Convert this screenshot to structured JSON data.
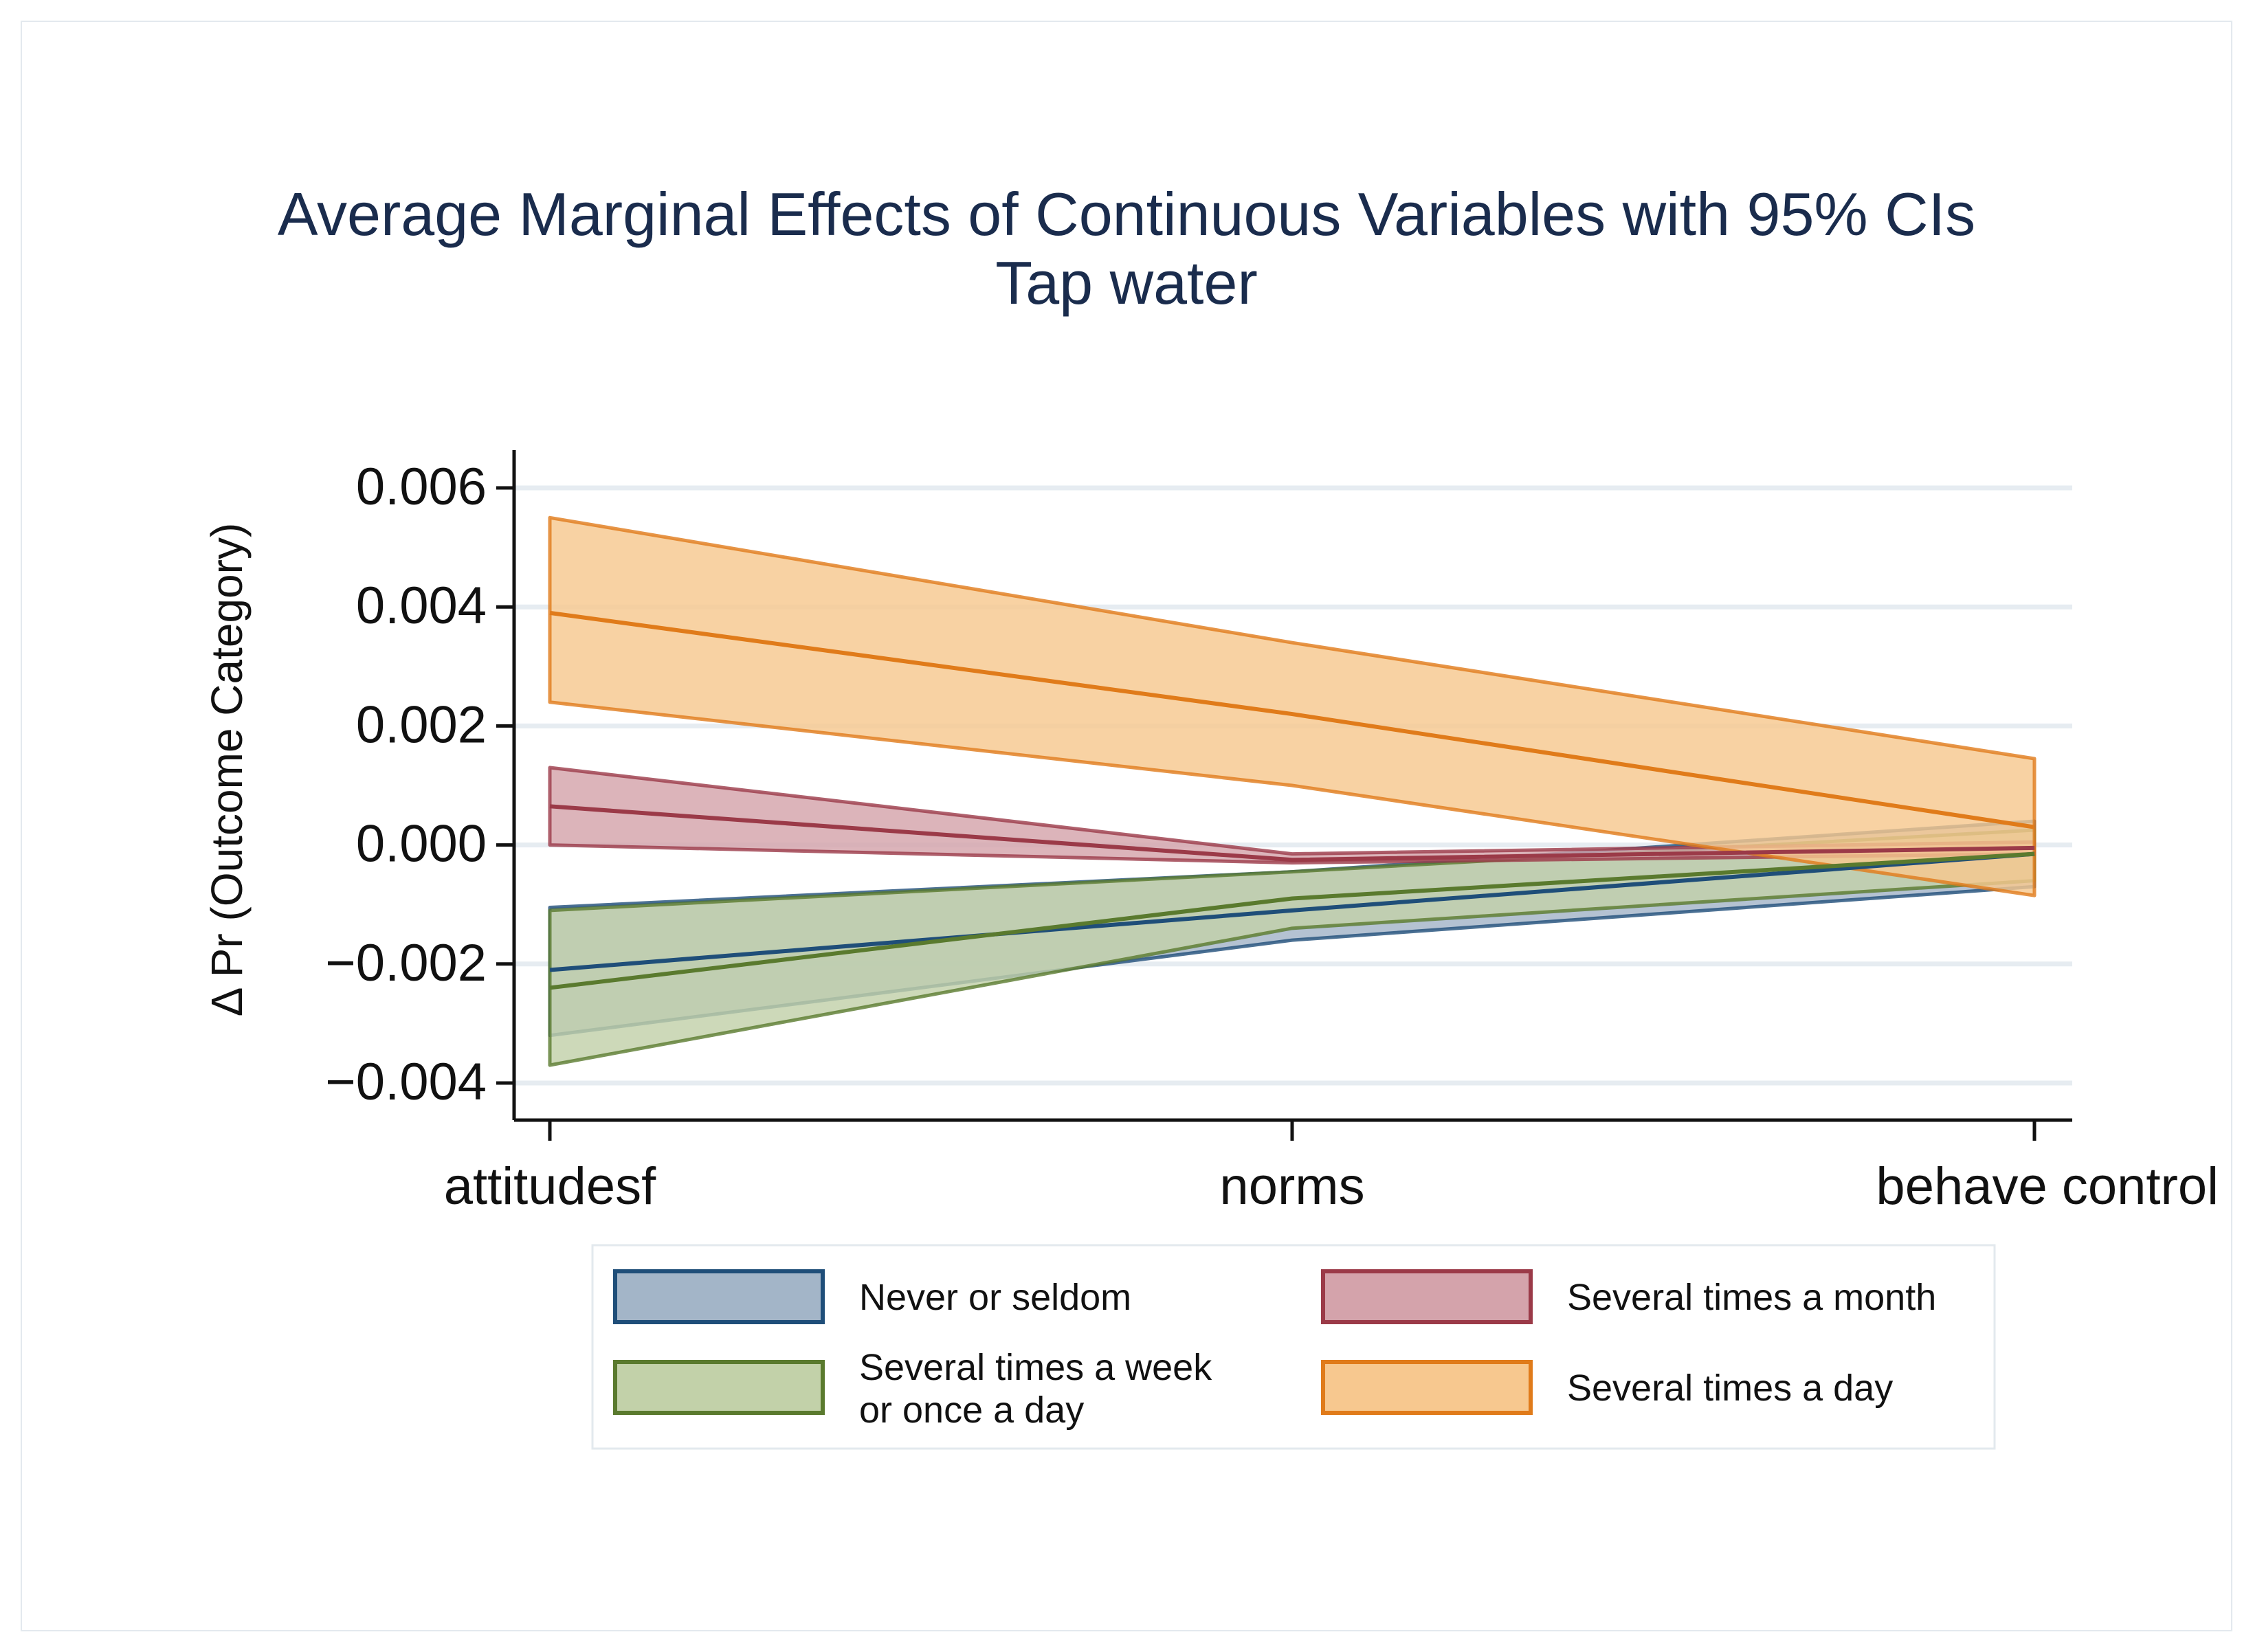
{
  "chart_data": {
    "type": "line",
    "title": "Average Marginal Effects of Continuous Variables with 95% CIs",
    "subtitle": "Tap water",
    "xlabel": "",
    "ylabel": "Δ Pr (Outcome Category)",
    "categories": [
      "attitudesf",
      "norms",
      "behave control"
    ],
    "ylim": [
      -0.0046,
      0.0061
    ],
    "yticks": [
      0.006,
      0.004,
      0.002,
      0.0,
      -0.002,
      -0.004
    ],
    "ytick_labels": [
      "0.006",
      "0.004",
      "0.002",
      "0.000",
      "−0.002",
      "−0.004"
    ],
    "grid": true,
    "legend_position": "bottom",
    "series": [
      {
        "name": "Never or seldom",
        "line_color": "#1f4e79",
        "fill_color": "#a3b5c8",
        "values": [
          -0.0021,
          -0.0011,
          -0.00015
        ],
        "lower": [
          -0.0032,
          -0.0016,
          -0.0007
        ],
        "upper": [
          -0.00105,
          -0.00045,
          0.0004
        ]
      },
      {
        "name": "Several times a week or once a day",
        "legend_lines": [
          "Several times a week",
          "or once a day"
        ],
        "line_color": "#5a7a2e",
        "fill_color": "#c2d1a9",
        "values": [
          -0.0024,
          -0.0009,
          -0.00015
        ],
        "lower": [
          -0.0037,
          -0.0014,
          -0.0006
        ],
        "upper": [
          -0.0011,
          -0.00045,
          0.00025
        ]
      },
      {
        "name": "Several times a month",
        "line_color": "#9b3a48",
        "fill_color": "#d4a3ab",
        "values": [
          0.00065,
          -0.00025,
          -5e-05
        ],
        "lower": [
          0.0,
          -0.0003,
          -0.00015
        ],
        "upper": [
          0.0013,
          -0.00015,
          5e-05
        ]
      },
      {
        "name": "Several times a day",
        "line_color": "#e07b1a",
        "fill_color": "#f7c88f",
        "values": [
          0.0039,
          0.0022,
          0.0003
        ],
        "lower": [
          0.0024,
          0.001,
          -0.00085
        ],
        "upper": [
          0.0055,
          0.0034,
          0.00145
        ]
      }
    ]
  }
}
